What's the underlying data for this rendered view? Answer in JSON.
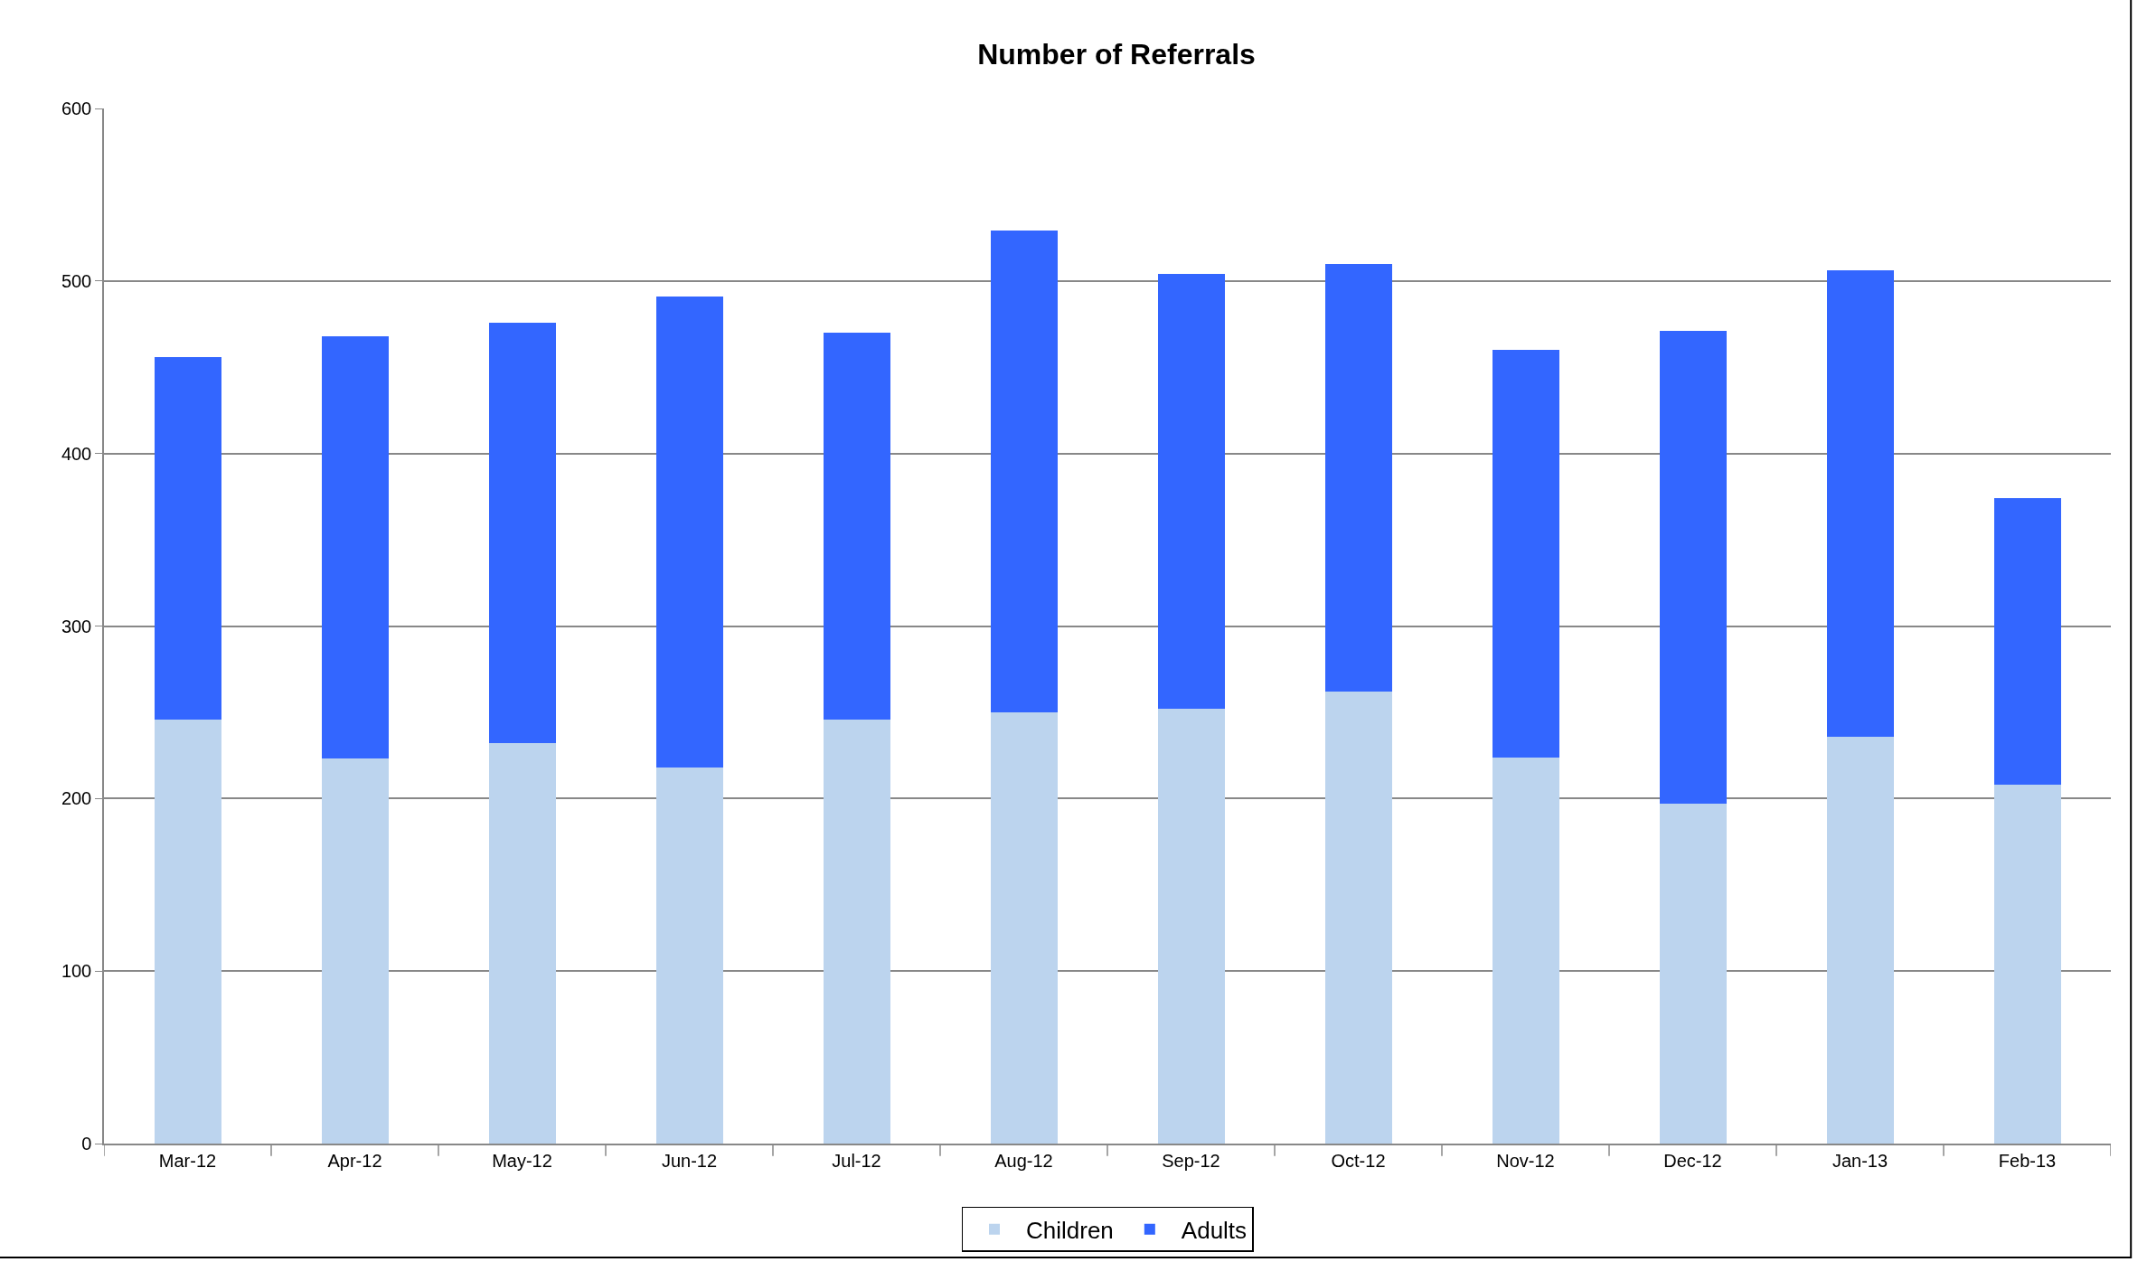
{
  "chart_data": {
    "type": "bar",
    "title": "Number of Referrals",
    "stacked": true,
    "categories": [
      "Mar-12",
      "Apr-12",
      "May-12",
      "Jun-12",
      "Jul-12",
      "Aug-12",
      "Sep-12",
      "Oct-12",
      "Nov-12",
      "Dec-12",
      "Jan-13",
      "Feb-13"
    ],
    "series": [
      {
        "name": "Children",
        "color": "#bcd4ee",
        "values": [
          246,
          223,
          232,
          218,
          246,
          250,
          252,
          262,
          224,
          197,
          236,
          208
        ]
      },
      {
        "name": "Adults",
        "color": "#3366ff",
        "values": [
          210,
          245,
          244,
          273,
          224,
          279,
          252,
          248,
          236,
          274,
          270,
          166
        ]
      }
    ],
    "ylim": [
      0,
      600
    ],
    "yticks": [
      0,
      100,
      200,
      300,
      400,
      500,
      600
    ],
    "grid": "y",
    "legend": "bottom"
  }
}
